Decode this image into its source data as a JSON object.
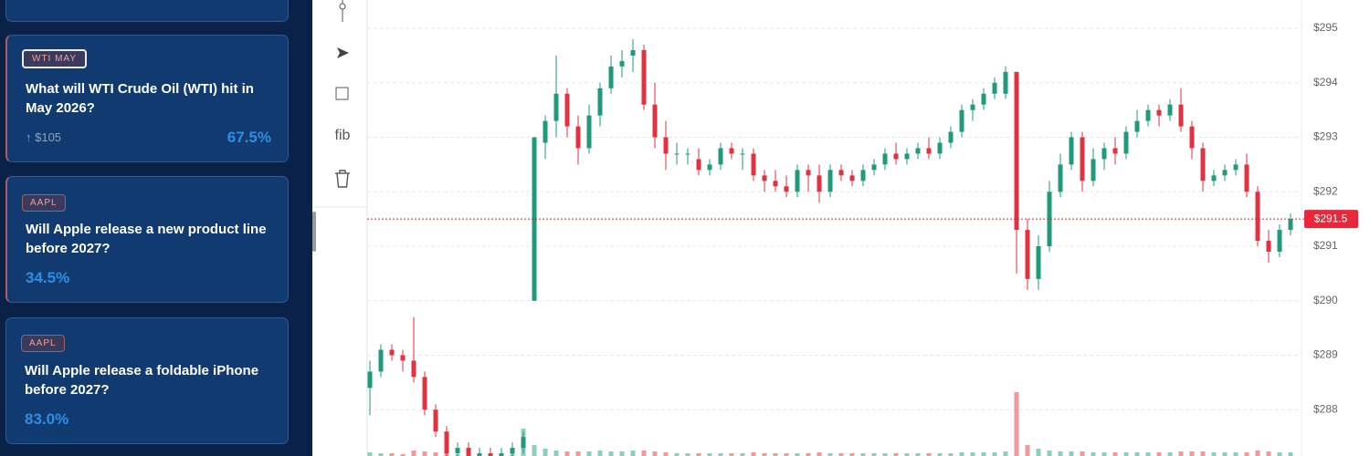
{
  "sidebar": {
    "cards": [
      {
        "tag": "WTI MAY",
        "question": "What will WTI Crude Oil (WTI) hit in May 2026?",
        "target": "↑ $105",
        "percent": "67.5%"
      },
      {
        "tag": "AAPL",
        "question": "Will Apple release a new product line before 2027?",
        "percent": "34.5%"
      },
      {
        "tag": "AAPL",
        "question": "Will Apple release a foldable iPhone before 2027?",
        "percent": "83.0%"
      }
    ]
  },
  "toolbar": {
    "fib": "fib"
  },
  "chart_data": {
    "type": "candlestick",
    "up_color": "#1f9a7a",
    "down_color": "#e0323f",
    "ylim": [
      287.15,
      295.52
    ],
    "yticks": [
      {
        "value": 295,
        "label": "$295"
      },
      {
        "value": 294,
        "label": "$294"
      },
      {
        "value": 293,
        "label": "$293"
      },
      {
        "value": 292,
        "label": "$292"
      },
      {
        "value": 291,
        "label": "$291"
      },
      {
        "value": 290,
        "label": "$290"
      },
      {
        "value": 289,
        "label": "$289"
      },
      {
        "value": 288,
        "label": "$288"
      }
    ],
    "grid": true,
    "last_price": 291.5,
    "last_price_label": "$291.5",
    "volume_lim": [
      0,
      100
    ],
    "ohlc": [
      [
        288.4,
        288.9,
        287.9,
        288.7
      ],
      [
        288.7,
        289.2,
        288.6,
        289.1
      ],
      [
        289.1,
        289.2,
        288.9,
        289.0
      ],
      [
        289.0,
        289.1,
        288.7,
        288.9
      ],
      [
        288.9,
        289.7,
        288.5,
        288.6
      ],
      [
        288.6,
        288.7,
        287.9,
        288.0
      ],
      [
        288.0,
        288.1,
        287.5,
        287.6
      ],
      [
        287.6,
        287.7,
        287.1,
        287.2
      ],
      [
        287.2,
        287.4,
        287.0,
        287.3
      ],
      [
        287.3,
        287.4,
        287.0,
        287.1
      ],
      [
        287.1,
        287.3,
        287.0,
        287.2
      ],
      [
        287.2,
        287.3,
        287.0,
        287.1
      ],
      [
        287.1,
        287.3,
        287.0,
        287.2
      ],
      [
        287.2,
        287.4,
        287.1,
        287.3
      ],
      [
        287.3,
        287.6,
        287.2,
        287.5
      ],
      [
        290.0,
        293.0,
        290.0,
        293.0
      ],
      [
        292.9,
        293.4,
        292.6,
        293.3
      ],
      [
        293.3,
        294.5,
        293.0,
        293.8
      ],
      [
        293.8,
        293.9,
        293.0,
        293.2
      ],
      [
        293.2,
        293.4,
        292.5,
        292.8
      ],
      [
        292.8,
        293.6,
        292.7,
        293.4
      ],
      [
        293.4,
        294.0,
        293.2,
        293.9
      ],
      [
        293.9,
        294.5,
        293.8,
        294.3
      ],
      [
        294.3,
        294.6,
        294.1,
        294.4
      ],
      [
        294.5,
        294.8,
        294.2,
        294.6
      ],
      [
        294.6,
        294.7,
        293.5,
        293.6
      ],
      [
        293.6,
        294.0,
        292.8,
        293.0
      ],
      [
        293.0,
        293.3,
        292.4,
        292.7
      ],
      [
        292.7,
        292.9,
        292.5,
        292.7
      ],
      [
        292.7,
        292.8,
        292.5,
        292.7
      ],
      [
        292.6,
        292.8,
        292.3,
        292.4
      ],
      [
        292.4,
        292.6,
        292.3,
        292.5
      ],
      [
        292.5,
        292.9,
        292.4,
        292.8
      ],
      [
        292.8,
        292.9,
        292.6,
        292.7
      ],
      [
        292.7,
        292.8,
        292.4,
        292.7
      ],
      [
        292.7,
        292.8,
        292.2,
        292.3
      ],
      [
        292.3,
        292.4,
        292.0,
        292.2
      ],
      [
        292.2,
        292.4,
        292.0,
        292.1
      ],
      [
        292.1,
        292.3,
        291.9,
        292.0
      ],
      [
        292.0,
        292.5,
        291.9,
        292.4
      ],
      [
        292.4,
        292.5,
        292.0,
        292.3
      ],
      [
        292.3,
        292.5,
        291.8,
        292.0
      ],
      [
        292.0,
        292.5,
        291.9,
        292.4
      ],
      [
        292.4,
        292.5,
        292.2,
        292.3
      ],
      [
        292.3,
        292.4,
        292.1,
        292.2
      ],
      [
        292.2,
        292.5,
        292.1,
        292.4
      ],
      [
        292.4,
        292.6,
        292.3,
        292.5
      ],
      [
        292.5,
        292.8,
        292.4,
        292.7
      ],
      [
        292.7,
        292.9,
        292.5,
        292.6
      ],
      [
        292.6,
        292.8,
        292.5,
        292.7
      ],
      [
        292.7,
        292.9,
        292.6,
        292.8
      ],
      [
        292.8,
        293.0,
        292.6,
        292.7
      ],
      [
        292.7,
        293.0,
        292.6,
        292.9
      ],
      [
        292.9,
        293.2,
        292.8,
        293.1
      ],
      [
        293.1,
        293.6,
        293.0,
        293.5
      ],
      [
        293.5,
        293.7,
        293.3,
        293.6
      ],
      [
        293.6,
        293.9,
        293.5,
        293.8
      ],
      [
        293.8,
        294.1,
        293.7,
        294.0
      ],
      [
        293.8,
        294.3,
        293.7,
        294.2
      ],
      [
        294.2,
        294.2,
        290.5,
        291.3
      ],
      [
        291.3,
        291.5,
        290.2,
        290.4
      ],
      [
        290.4,
        291.2,
        290.2,
        291.0
      ],
      [
        291.0,
        292.2,
        290.9,
        292.0
      ],
      [
        292.0,
        292.7,
        291.9,
        292.5
      ],
      [
        292.5,
        293.1,
        292.4,
        293.0
      ],
      [
        293.0,
        293.1,
        292.0,
        292.2
      ],
      [
        292.2,
        292.8,
        292.1,
        292.6
      ],
      [
        292.6,
        292.9,
        292.4,
        292.8
      ],
      [
        292.8,
        293.0,
        292.5,
        292.7
      ],
      [
        292.7,
        293.2,
        292.6,
        293.1
      ],
      [
        293.1,
        293.5,
        293.0,
        293.3
      ],
      [
        293.3,
        293.6,
        293.2,
        293.5
      ],
      [
        293.5,
        293.6,
        293.2,
        293.4
      ],
      [
        293.4,
        293.7,
        293.3,
        293.6
      ],
      [
        293.6,
        293.9,
        293.1,
        293.2
      ],
      [
        293.2,
        293.3,
        292.6,
        292.8
      ],
      [
        292.8,
        292.9,
        292.0,
        292.2
      ],
      [
        292.2,
        292.4,
        292.1,
        292.3
      ],
      [
        292.3,
        292.5,
        292.2,
        292.4
      ],
      [
        292.4,
        292.6,
        292.3,
        292.5
      ],
      [
        292.5,
        292.7,
        291.9,
        292.0
      ],
      [
        292.0,
        292.1,
        291.0,
        291.1
      ],
      [
        291.1,
        291.3,
        290.7,
        290.9
      ],
      [
        290.9,
        291.4,
        290.8,
        291.3
      ],
      [
        291.3,
        291.6,
        291.2,
        291.5
      ]
    ],
    "volume": [
      4,
      3,
      3,
      2,
      6,
      5,
      4,
      3,
      2,
      2,
      2,
      2,
      3,
      3,
      30,
      12,
      8,
      6,
      5,
      5,
      5,
      6,
      5,
      5,
      6,
      6,
      5,
      4,
      3,
      3,
      3,
      3,
      3,
      3,
      3,
      4,
      3,
      3,
      3,
      3,
      3,
      4,
      3,
      3,
      3,
      3,
      3,
      3,
      3,
      3,
      3,
      3,
      3,
      3,
      4,
      4,
      4,
      4,
      5,
      70,
      12,
      8,
      6,
      5,
      5,
      5,
      4,
      4,
      4,
      4,
      4,
      4,
      4,
      4,
      5,
      5,
      5,
      4,
      4,
      4,
      4,
      6,
      5,
      4,
      4
    ]
  }
}
